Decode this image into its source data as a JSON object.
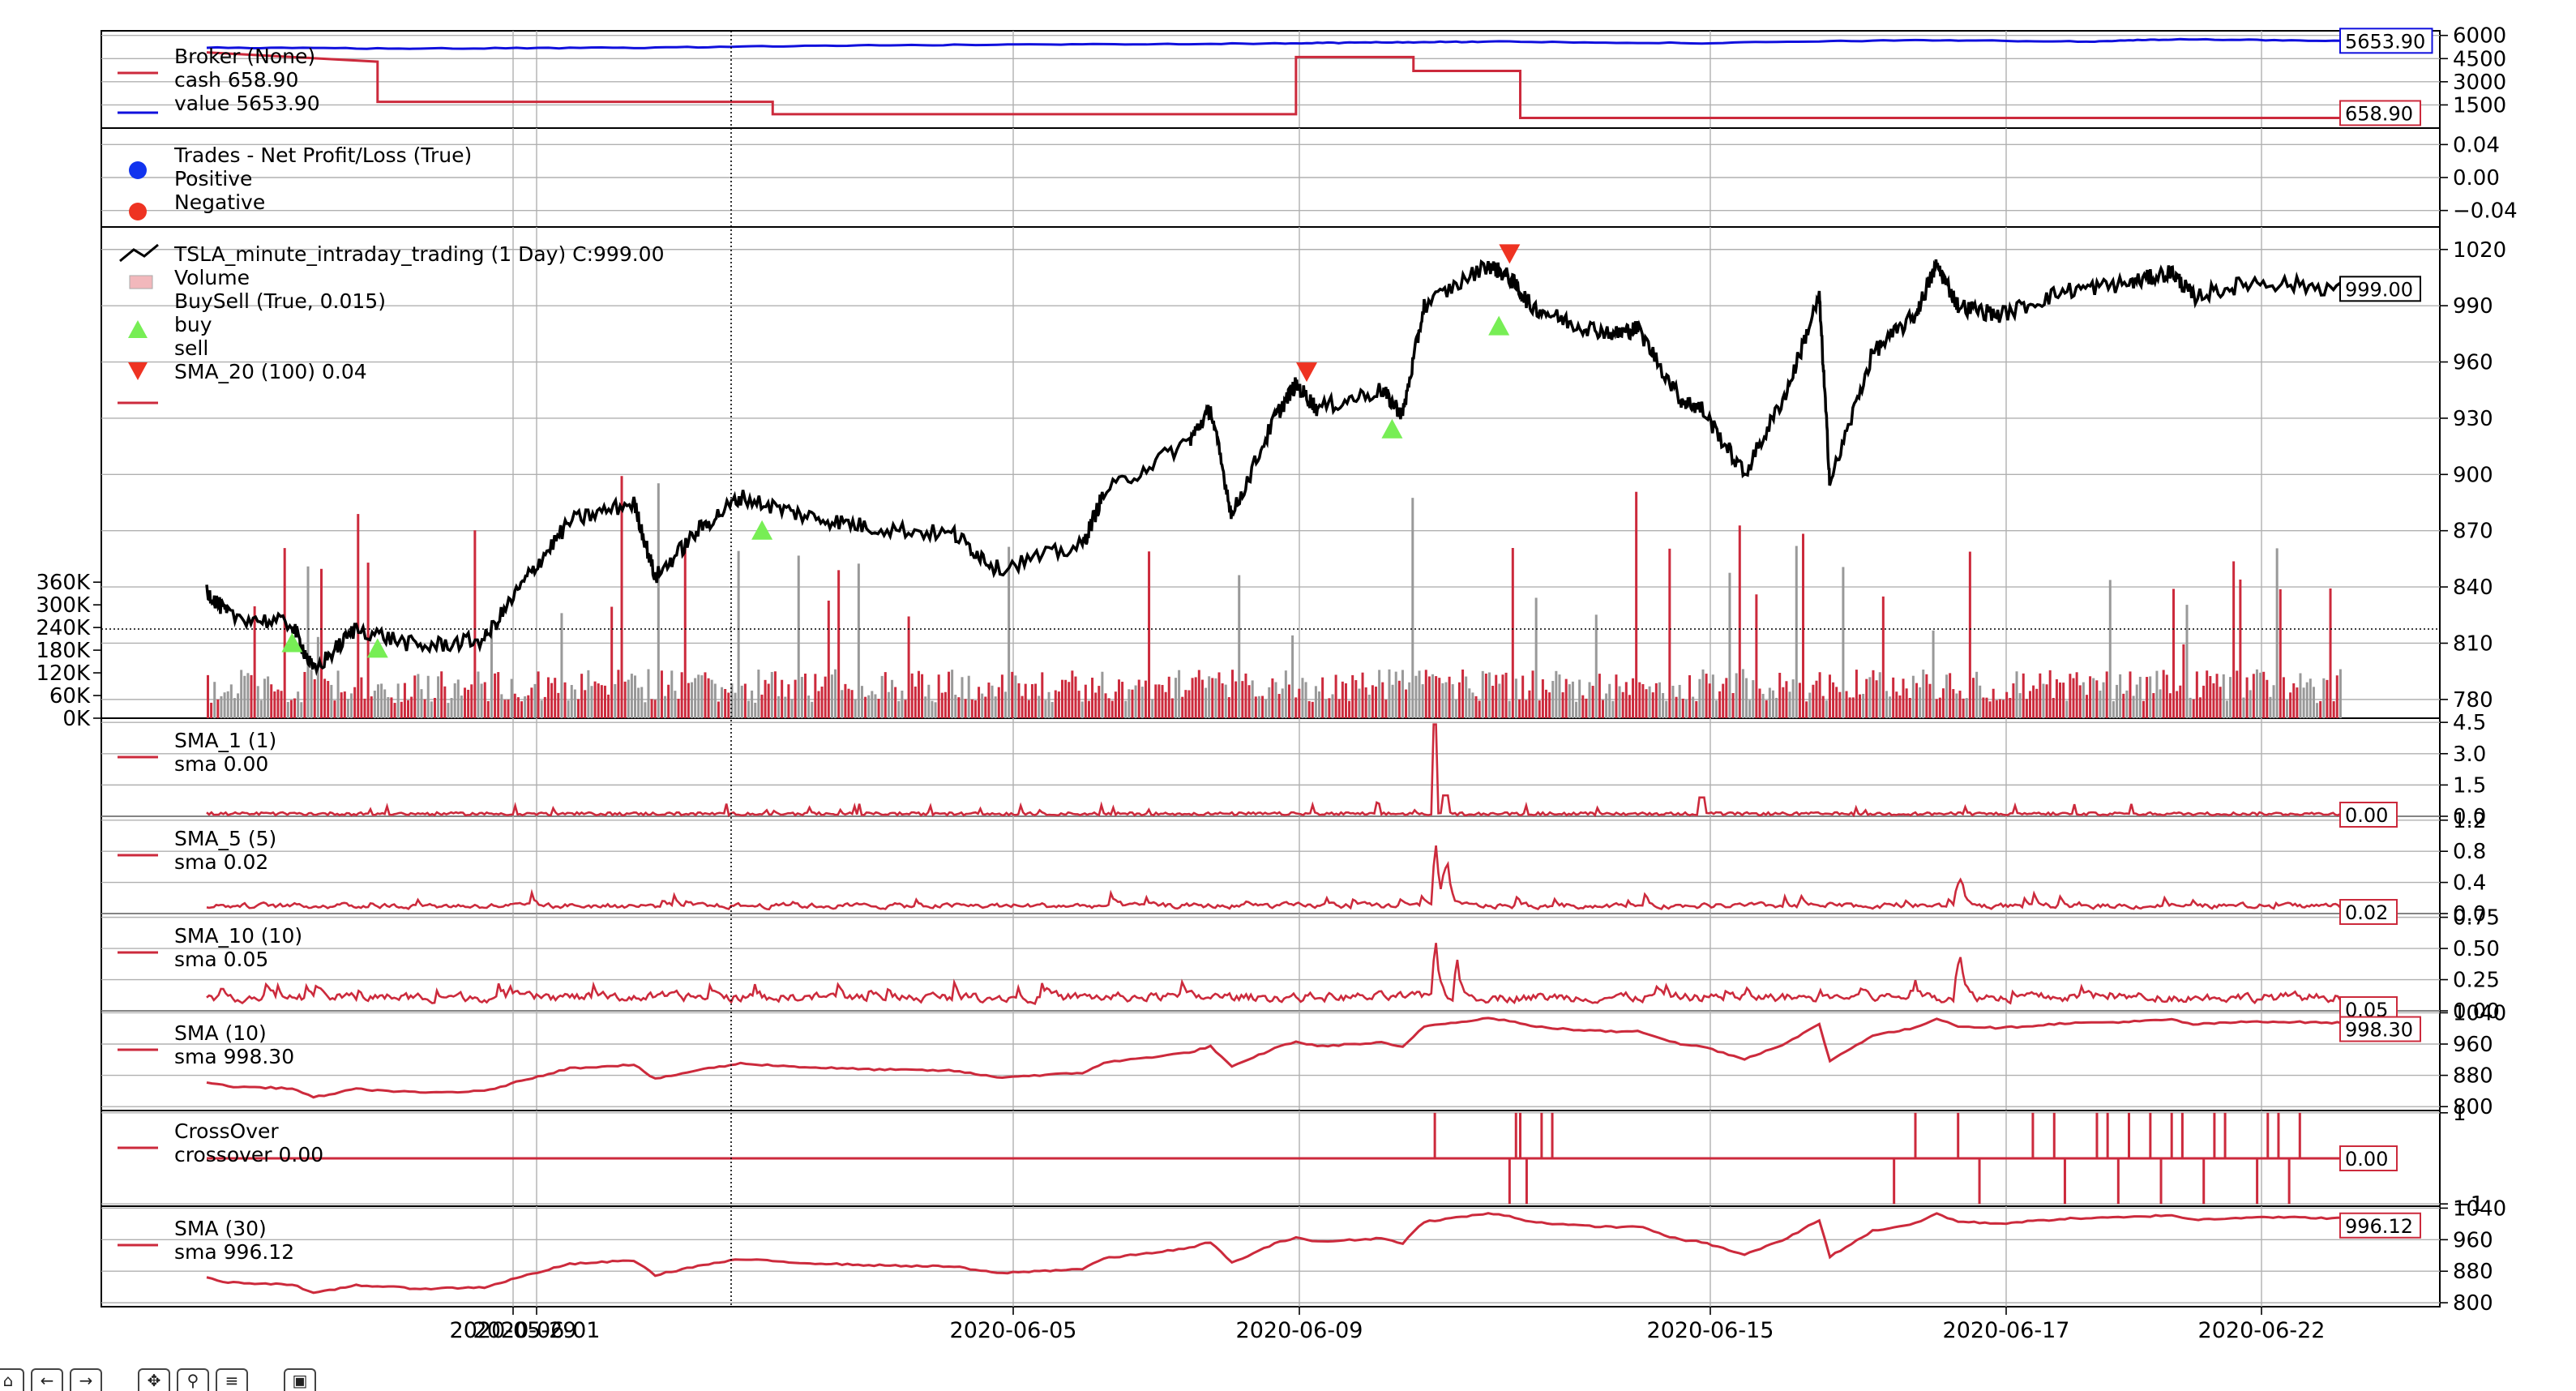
{
  "colors": {
    "value": "#1010dd",
    "cash": "#cc2a3c",
    "price": "#000000",
    "indicator": "#cc2a3c",
    "buy": "#77ee55",
    "sell": "#ee3322",
    "positive": "#1133ee",
    "negative": "#ee3322",
    "vol_up": "#cc2a3c",
    "vol_down": "#999999",
    "grid": "#b0b0b0"
  },
  "x_axis": {
    "ticks": [
      "2020-05-29",
      "2020-06-01",
      "2020-06-05",
      "2020-06-09",
      "2020-06-15",
      "2020-06-17",
      "2020-06-22"
    ]
  },
  "toolbar": {
    "buttons": [
      {
        "icon": "home-icon",
        "glyph": "⌂"
      },
      {
        "icon": "back-arrow-icon",
        "glyph": "←"
      },
      {
        "icon": "forward-arrow-icon",
        "glyph": "→"
      },
      {
        "icon": "pan-icon",
        "glyph": "✥"
      },
      {
        "icon": "zoom-icon",
        "glyph": "⚲"
      },
      {
        "icon": "subplots-icon",
        "glyph": "≡"
      },
      {
        "icon": "save-icon",
        "glyph": "▣"
      }
    ]
  },
  "chart_data": [
    {
      "type": "line",
      "name": "broker",
      "legend": [
        "Broker (None)",
        "cash 658.90",
        "value 5653.90"
      ],
      "yticks": [
        1500,
        3000,
        4500,
        6000
      ],
      "ylim": [
        0,
        6300
      ],
      "value_series": [
        [
          0,
          5200
        ],
        [
          0.1,
          5150
        ],
        [
          0.2,
          5200
        ],
        [
          0.3,
          5350
        ],
        [
          0.4,
          5420
        ],
        [
          0.5,
          5480
        ],
        [
          0.55,
          5550
        ],
        [
          0.6,
          5600
        ],
        [
          0.7,
          5500
        ],
        [
          0.8,
          5700
        ],
        [
          0.88,
          5600
        ],
        [
          0.92,
          5750
        ],
        [
          1.0,
          5653.9
        ]
      ],
      "cash_steps": [
        [
          0,
          4900
        ],
        [
          0.08,
          4300
        ],
        [
          0.08,
          1700
        ],
        [
          0.265,
          1700
        ],
        [
          0.265,
          900
        ],
        [
          0.51,
          900
        ],
        [
          0.51,
          4600
        ],
        [
          0.565,
          4600
        ],
        [
          0.565,
          3700
        ],
        [
          0.615,
          3700
        ],
        [
          0.615,
          658.9
        ],
        [
          1.0,
          658.9
        ]
      ],
      "last_value_label": "5653.90",
      "last_cash_label": "658.90"
    },
    {
      "type": "scatter",
      "name": "trades",
      "legend": [
        "Trades - Net Profit/Loss (True)",
        "Positive",
        "Negative"
      ],
      "yticks": [
        "−0.04",
        "0.00",
        "0.04"
      ],
      "ylim": [
        -0.06,
        0.06
      ],
      "points": []
    },
    {
      "type": "line",
      "name": "price",
      "legend": [
        "TSLA_minute_intraday_trading (1 Day) C:999.00",
        "Volume",
        "BuySell (True, 0.015)",
        "buy",
        "sell",
        "SMA_20 (100) 0.04"
      ],
      "yticks": [
        780,
        810,
        840,
        870,
        900,
        930,
        960,
        990,
        1020
      ],
      "ylim": [
        770,
        1032
      ],
      "volume_ticks": [
        "0K",
        "60K",
        "120K",
        "180K",
        "240K",
        "300K",
        "360K"
      ],
      "volume_max": 1300000,
      "price_anchors": [
        [
          0,
          838
        ],
        [
          0.01,
          825
        ],
        [
          0.04,
          820
        ],
        [
          0.05,
          795
        ],
        [
          0.07,
          818
        ],
        [
          0.1,
          808
        ],
        [
          0.13,
          812
        ],
        [
          0.15,
          845
        ],
        [
          0.17,
          875
        ],
        [
          0.2,
          885
        ],
        [
          0.21,
          845
        ],
        [
          0.23,
          870
        ],
        [
          0.25,
          888
        ],
        [
          0.28,
          878
        ],
        [
          0.31,
          872
        ],
        [
          0.35,
          868
        ],
        [
          0.37,
          850
        ],
        [
          0.41,
          862
        ],
        [
          0.42,
          890
        ],
        [
          0.46,
          918
        ],
        [
          0.47,
          935
        ],
        [
          0.48,
          878
        ],
        [
          0.5,
          930
        ],
        [
          0.51,
          948
        ],
        [
          0.52,
          935
        ],
        [
          0.55,
          945
        ],
        [
          0.56,
          932
        ],
        [
          0.57,
          990
        ],
        [
          0.6,
          1012
        ],
        [
          0.61,
          1005
        ],
        [
          0.62,
          990
        ],
        [
          0.64,
          980
        ],
        [
          0.66,
          975
        ],
        [
          0.67,
          978
        ],
        [
          0.69,
          940
        ],
        [
          0.7,
          935
        ],
        [
          0.72,
          900
        ],
        [
          0.74,
          945
        ],
        [
          0.755,
          995
        ],
        [
          0.76,
          895
        ],
        [
          0.78,
          965
        ],
        [
          0.8,
          985
        ],
        [
          0.81,
          1012
        ],
        [
          0.82,
          990
        ],
        [
          0.84,
          985
        ],
        [
          0.87,
          998
        ],
        [
          0.9,
          1002
        ],
        [
          0.92,
          1008
        ],
        [
          0.93,
          995
        ],
        [
          0.96,
          1003
        ],
        [
          1.0,
          999
        ]
      ],
      "buy_markers": [
        [
          0.04,
          810
        ],
        [
          0.08,
          807
        ],
        [
          0.26,
          870
        ],
        [
          0.555,
          924
        ],
        [
          0.605,
          979
        ]
      ],
      "sell_markers": [
        [
          0.515,
          955
        ],
        [
          0.61,
          1018
        ]
      ],
      "last_label": "999.00"
    },
    {
      "type": "line",
      "name": "sma1",
      "legend": [
        "SMA_1 (1)",
        "sma 0.00"
      ],
      "yticks": [
        "0.0",
        "1.5",
        "3.0",
        "4.5"
      ],
      "ylim": [
        0,
        4.7
      ],
      "last_label": "0.00"
    },
    {
      "type": "line",
      "name": "sma5",
      "legend": [
        "SMA_5 (5)",
        "sma 0.02"
      ],
      "yticks": [
        "0.0",
        "0.4",
        "0.8",
        "1.2"
      ],
      "ylim": [
        0,
        1.25
      ],
      "last_label": "0.02"
    },
    {
      "type": "line",
      "name": "sma10",
      "legend": [
        "SMA_10 (10)",
        "sma 0.05"
      ],
      "yticks": [
        "0.00",
        "0.25",
        "0.50",
        "0.75"
      ],
      "ylim": [
        0,
        0.78
      ],
      "last_label": "0.05"
    },
    {
      "type": "line",
      "name": "sma10b",
      "legend": [
        "SMA (10)",
        "sma 998.30"
      ],
      "yticks": [
        800,
        880,
        960,
        1040
      ],
      "ylim": [
        790,
        1045
      ],
      "last_label": "998.30"
    },
    {
      "type": "line",
      "name": "crossover",
      "legend": [
        "CrossOver",
        "crossover 0.00"
      ],
      "yticks": [
        "−1",
        "1"
      ],
      "ylim": [
        -1.05,
        1.05
      ],
      "cross_positions": [
        0.575,
        0.61,
        0.613,
        0.615,
        0.618,
        0.625,
        0.63,
        0.79,
        0.8,
        0.82,
        0.83,
        0.855,
        0.865,
        0.87,
        0.885,
        0.89,
        0.895,
        0.9,
        0.91,
        0.915,
        0.92,
        0.925,
        0.935,
        0.94,
        0.945,
        0.96,
        0.965,
        0.97,
        0.975,
        0.98
      ],
      "last_label": "0.00"
    },
    {
      "type": "line",
      "name": "sma30",
      "legend": [
        "SMA (30)",
        "sma 996.12"
      ],
      "yticks": [
        800,
        880,
        960,
        1040
      ],
      "ylim": [
        790,
        1045
      ],
      "last_label": "996.12"
    }
  ]
}
